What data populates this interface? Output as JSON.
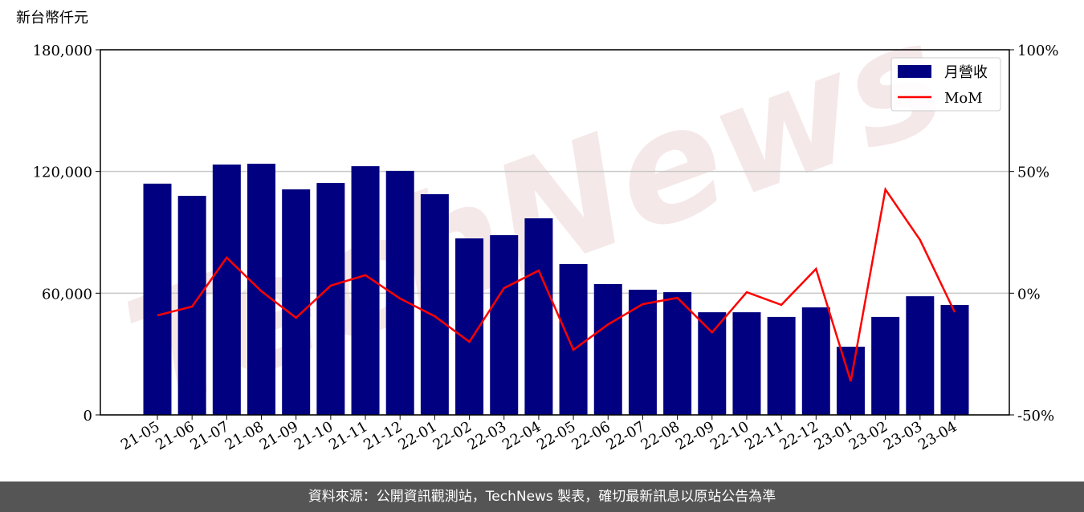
{
  "chart_data": {
    "type": "bar-line",
    "watermark": "TechNews",
    "y_label": "新台幣仟元",
    "categories": [
      "21-05",
      "21-06",
      "21-07",
      "21-08",
      "21-09",
      "21-10",
      "21-11",
      "21-12",
      "22-01",
      "22-02",
      "22-03",
      "22-04",
      "22-05",
      "22-06",
      "22-07",
      "22-08",
      "22-09",
      "22-10",
      "22-11",
      "22-12",
      "23-01",
      "23-02",
      "23-03",
      "23-04"
    ],
    "series": [
      {
        "name": "月營收",
        "type": "bar",
        "color": "#000080",
        "values": [
          114000,
          108000,
          123400,
          123800,
          111200,
          114300,
          122600,
          120300,
          108800,
          87000,
          88600,
          96900,
          74400,
          64500,
          61700,
          60500,
          50600,
          50600,
          48300,
          53000,
          33600,
          48300,
          58500,
          54200
        ]
      },
      {
        "name": "MoM",
        "type": "line",
        "axis": "y2",
        "color": "#ff0000",
        "values": [
          -9.1,
          -5.5,
          14.6,
          0.8,
          -10.1,
          3.1,
          7.4,
          -2.2,
          -9.5,
          -20.0,
          2.1,
          9.3,
          -23.3,
          -12.8,
          -4.5,
          -1.9,
          -16.1,
          0.4,
          -4.8,
          10.0,
          -36.2,
          42.6,
          21.9,
          -7.8
        ]
      }
    ],
    "ylim": [
      0,
      180000
    ],
    "yticks": [
      {
        "value": 0,
        "label": "0"
      },
      {
        "value": 60000,
        "label": "60,000"
      },
      {
        "value": 120000,
        "label": "120,000"
      },
      {
        "value": 180000,
        "label": "180,000"
      }
    ],
    "y2lim": [
      -50,
      100
    ],
    "y2ticks": [
      {
        "value": -50,
        "label": "-50%"
      },
      {
        "value": 0,
        "label": "0%"
      },
      {
        "value": 50,
        "label": "50%"
      },
      {
        "value": 100,
        "label": "100%"
      }
    ],
    "grid": true,
    "legend": "upper right",
    "footer": "資料來源：公開資訊觀測站，TechNews 製表，確切最新訊息以原站公告為準"
  }
}
